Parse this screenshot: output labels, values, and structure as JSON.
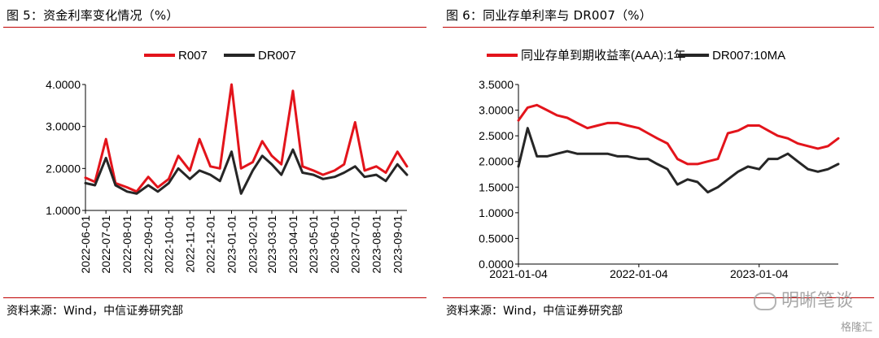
{
  "left": {
    "title": "图 5：资金利率变化情况（%）",
    "source": "资料来源：Wind，中信证券研究部",
    "legend": [
      {
        "label": "R007",
        "color": "#e3141b"
      },
      {
        "label": "DR007",
        "color": "#262626"
      }
    ]
  },
  "right": {
    "title": "图 6：同业存单利率与 DR007（%）",
    "source": "资料来源：Wind，中信证券研究部",
    "legend": [
      {
        "label": "同业存单到期收益率(AAA):1年",
        "color": "#e3141b"
      },
      {
        "label": "DR007:10MA",
        "color": "#262626"
      }
    ]
  },
  "watermark": "明晰笔谈",
  "brand": "格隆汇",
  "chart_data": [
    {
      "type": "line",
      "ylim": [
        1.0,
        4.0
      ],
      "yticks": [
        "1.0000",
        "2.0000",
        "3.0000",
        "4.0000"
      ],
      "x": [
        "2022-06-01",
        "2022-06-15",
        "2022-07-01",
        "2022-07-15",
        "2022-08-01",
        "2022-08-15",
        "2022-09-01",
        "2022-09-15",
        "2022-10-01",
        "2022-10-15",
        "2022-11-01",
        "2022-11-15",
        "2022-12-01",
        "2022-12-15",
        "2023-01-01",
        "2023-01-15",
        "2023-02-01",
        "2023-02-15",
        "2023-03-01",
        "2023-03-15",
        "2023-04-01",
        "2023-04-15",
        "2023-05-01",
        "2023-05-15",
        "2023-06-01",
        "2023-06-15",
        "2023-07-01",
        "2023-07-15",
        "2023-08-01",
        "2023-08-15",
        "2023-09-01",
        "2023-09-15"
      ],
      "xticks": [
        "2022-06-01",
        "2022-07-01",
        "2022-08-01",
        "2022-09-01",
        "2022-10-01",
        "2022-11-01",
        "2022-12-01",
        "2023-01-01",
        "2023-02-01",
        "2023-03-01",
        "2023-04-01",
        "2023-05-01",
        "2023-06-01",
        "2023-07-01",
        "2023-08-01",
        "2023-09-01"
      ],
      "series": [
        {
          "name": "R007",
          "color": "#e3141b",
          "values": [
            1.78,
            1.68,
            2.7,
            1.65,
            1.55,
            1.45,
            1.8,
            1.55,
            1.75,
            2.3,
            1.95,
            2.7,
            2.05,
            2.0,
            4.0,
            2.0,
            2.15,
            2.65,
            2.3,
            2.1,
            3.85,
            2.05,
            1.95,
            1.85,
            1.95,
            2.1,
            3.1,
            1.95,
            2.05,
            1.9,
            2.4,
            2.05
          ]
        },
        {
          "name": "DR007",
          "color": "#262626",
          "values": [
            1.65,
            1.6,
            2.25,
            1.6,
            1.45,
            1.4,
            1.6,
            1.45,
            1.65,
            2.0,
            1.75,
            1.95,
            1.85,
            1.7,
            2.4,
            1.4,
            1.95,
            2.3,
            2.1,
            1.85,
            2.45,
            1.9,
            1.85,
            1.75,
            1.8,
            1.9,
            2.05,
            1.8,
            1.85,
            1.7,
            2.1,
            1.85
          ]
        }
      ]
    },
    {
      "type": "line",
      "ylim": [
        0.0,
        3.5
      ],
      "yticks": [
        "0.0000",
        "0.5000",
        "1.0000",
        "1.5000",
        "2.0000",
        "2.5000",
        "3.0000",
        "3.5000"
      ],
      "x": [
        "2021-01-04",
        "2021-02-01",
        "2021-03-01",
        "2021-04-01",
        "2021-05-01",
        "2021-06-01",
        "2021-07-01",
        "2021-08-01",
        "2021-09-01",
        "2021-10-01",
        "2021-11-01",
        "2021-12-01",
        "2022-01-04",
        "2022-02-01",
        "2022-03-01",
        "2022-04-01",
        "2022-05-01",
        "2022-06-01",
        "2022-07-01",
        "2022-08-01",
        "2022-09-01",
        "2022-10-01",
        "2022-11-01",
        "2022-12-01",
        "2023-01-04",
        "2023-02-01",
        "2023-03-01",
        "2023-04-01",
        "2023-05-01",
        "2023-06-01",
        "2023-07-01",
        "2023-08-01",
        "2023-09-01"
      ],
      "xticks": [
        "2021-01-04",
        "2022-01-04",
        "2023-01-04"
      ],
      "series": [
        {
          "name": "同业存单到期收益率(AAA):1年",
          "color": "#e3141b",
          "values": [
            2.8,
            3.05,
            3.1,
            3.0,
            2.9,
            2.85,
            2.75,
            2.65,
            2.7,
            2.75,
            2.75,
            2.7,
            2.65,
            2.55,
            2.45,
            2.35,
            2.05,
            1.95,
            1.95,
            2.0,
            2.05,
            2.55,
            2.6,
            2.7,
            2.7,
            2.6,
            2.5,
            2.45,
            2.35,
            2.3,
            2.25,
            2.3,
            2.45
          ]
        },
        {
          "name": "DR007:10MA",
          "color": "#262626",
          "values": [
            1.9,
            2.65,
            2.1,
            2.1,
            2.15,
            2.2,
            2.15,
            2.15,
            2.15,
            2.15,
            2.1,
            2.1,
            2.05,
            2.05,
            1.95,
            1.85,
            1.55,
            1.65,
            1.6,
            1.4,
            1.5,
            1.65,
            1.8,
            1.9,
            1.85,
            2.05,
            2.05,
            2.15,
            2.0,
            1.85,
            1.8,
            1.85,
            1.95
          ]
        }
      ]
    }
  ]
}
